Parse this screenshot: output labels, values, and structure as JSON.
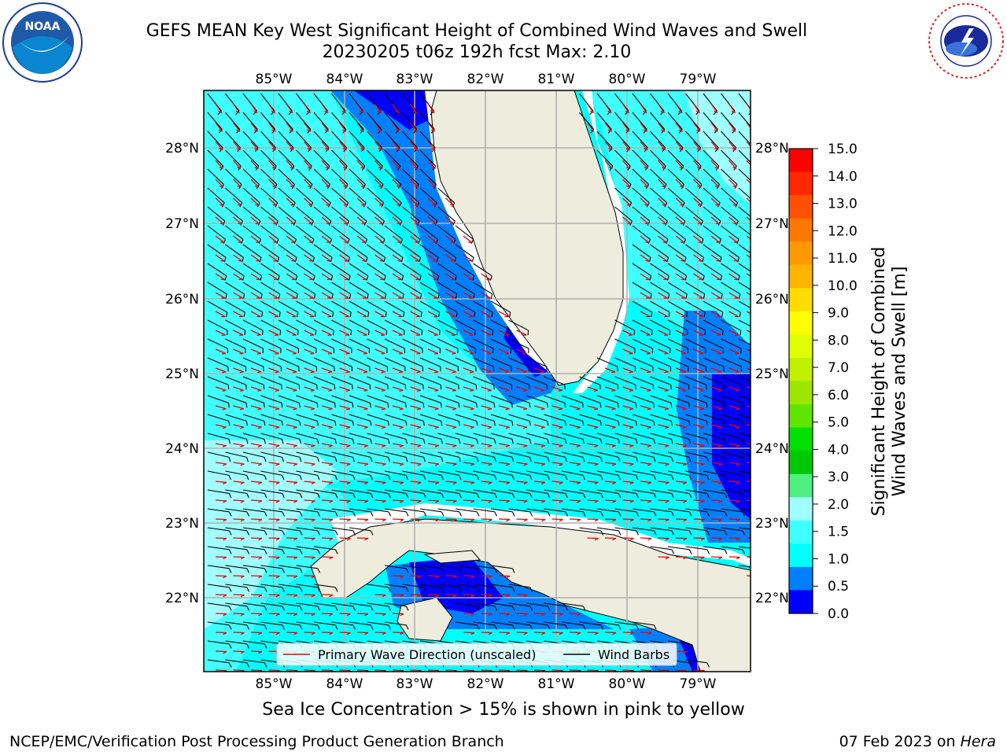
{
  "header": {
    "title_line1": "GEFS MEAN Key West Significant Height of Combined Wind Waves and Swell",
    "title_line2": "20230205 t06z 192h fcst   Max: 2.10",
    "noaa_logo_text": "NOAA",
    "noaa_ring_text": "NATIONAL OCEANIC AND ATMOSPHERIC ADMINISTRATION · U.S. DEPARTMENT OF COMMERCE",
    "nws_ring_text": "NATIONAL WEATHER SERVICE"
  },
  "map": {
    "lon_labels": [
      "85°W",
      "84°W",
      "83°W",
      "82°W",
      "81°W",
      "80°W",
      "79°W"
    ],
    "lat_labels": [
      "28°N",
      "27°N",
      "26°N",
      "25°N",
      "24°N",
      "23°N",
      "22°N"
    ],
    "colors": {
      "land": "#eeecdc",
      "very_low": "#0000ff",
      "low": "#0080ff",
      "mid": "#00ffff",
      "upper": "#40ffff",
      "high": "#a0ffff",
      "grid": "#b0b0b0",
      "wave_arrow": "#ee0000",
      "barb": "#000000"
    },
    "legend": {
      "wave_label": "Primary Wave Direction (unscaled)",
      "barb_label": "Wind Barbs"
    }
  },
  "colorbar": {
    "label_line1": "Significant Height of Combined",
    "label_line2": "Wind Waves and Swell [m]",
    "ticks": [
      "15.0",
      "14.0",
      "13.0",
      "12.0",
      "11.0",
      "10.0",
      "9.0",
      "8.0",
      "7.0",
      "6.0",
      "5.0",
      "4.0",
      "3.0",
      "2.0",
      "1.5",
      "1.0",
      "0.5",
      "0.0"
    ],
    "bands": [
      "#ff0000",
      "#ff2800",
      "#ff5000",
      "#ff7800",
      "#ff9900",
      "#ffb400",
      "#ffdc00",
      "#ffff00",
      "#e0ff00",
      "#c0f000",
      "#9ee600",
      "#5ee600",
      "#00e000",
      "#00c800",
      "#50f080",
      "#a0ffff",
      "#40ffff",
      "#00ffff",
      "#0080ff",
      "#0000ff"
    ]
  },
  "footer": {
    "ice_note": "Sea Ice Concentration > 15% is shown in pink to yellow",
    "credit": "NCEP/EMC/Verification Post Processing Product Generation Branch",
    "date_prefix": "07 Feb 2023 on ",
    "date_host": "Hera"
  }
}
